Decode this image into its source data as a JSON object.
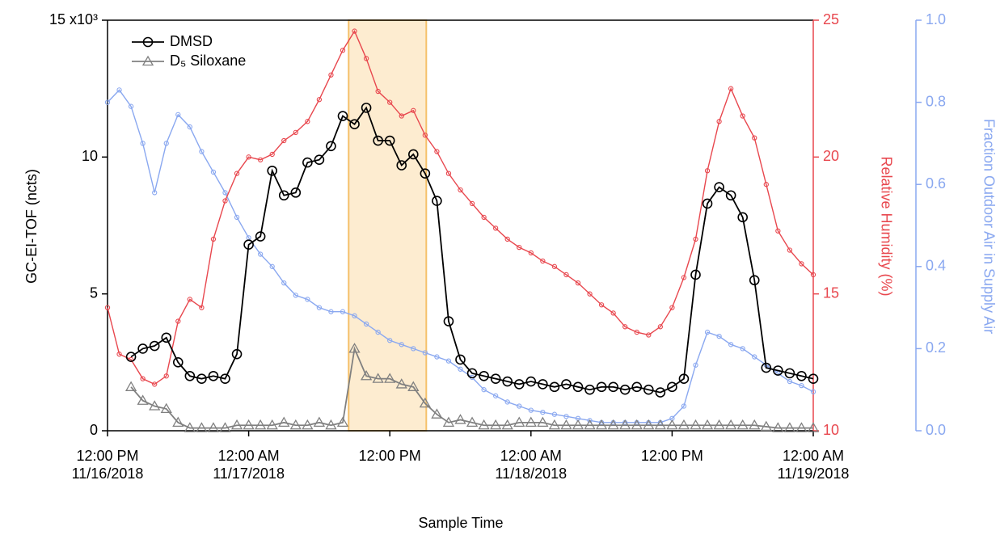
{
  "chart_data": {
    "type": "line",
    "xlabel": "Sample Time",
    "ylabel": "GC-EI-TOF (ncts)",
    "y2label": "Relative Humidity (%)",
    "y3label": "Fraction Outdoor Air in Supply Air",
    "xlim": [
      "2018-11-16 12:00",
      "2018-11-19 00:00"
    ],
    "xticks": [
      {
        "value": "2018-11-16 12:00",
        "label": "12:00 PM\n11/16/2018"
      },
      {
        "value": "2018-11-17 00:00",
        "label": "12:00 AM\n11/17/2018"
      },
      {
        "value": "2018-11-17 12:00",
        "label": "12:00 PM"
      },
      {
        "value": "2018-11-18 00:00",
        "label": "12:00 AM\n11/18/2018"
      },
      {
        "value": "2018-11-18 12:00",
        "label": "12:00 PM"
      },
      {
        "value": "2018-11-19 00:00",
        "label": "12:00 AM\n11/19/2018"
      }
    ],
    "ylim": [
      0,
      15
    ],
    "yticks": [
      0,
      5,
      10,
      {
        "value": 15,
        "label": "15 x10³"
      }
    ],
    "y2lim": [
      10,
      25
    ],
    "y2ticks": [
      10,
      15,
      20,
      25
    ],
    "y3lim": [
      0,
      1
    ],
    "y3ticks": [
      {
        "value": 0,
        "label": "0.0"
      },
      0.2,
      0.4,
      0.6,
      0.8,
      {
        "value": 1,
        "label": "1.0"
      }
    ],
    "y2color": "#e8474e",
    "y3color": "#8aa8f0",
    "highlight": {
      "x": [
        "2018-11-17 08:30",
        "2018-11-17 15:06"
      ],
      "color": "#fdecd0",
      "edge": "#f5c06a"
    },
    "legend": "upper left",
    "x": [
      "2018-11-16 12:00",
      "2018-11-16 13:00",
      "2018-11-16 14:00",
      "2018-11-16 15:00",
      "2018-11-16 16:00",
      "2018-11-16 17:00",
      "2018-11-16 18:00",
      "2018-11-16 19:00",
      "2018-11-16 20:00",
      "2018-11-16 21:00",
      "2018-11-16 22:00",
      "2018-11-16 23:00",
      "2018-11-17 00:00",
      "2018-11-17 01:00",
      "2018-11-17 02:00",
      "2018-11-17 03:00",
      "2018-11-17 04:00",
      "2018-11-17 05:00",
      "2018-11-17 06:00",
      "2018-11-17 07:00",
      "2018-11-17 08:00",
      "2018-11-17 09:00",
      "2018-11-17 10:00",
      "2018-11-17 11:00",
      "2018-11-17 12:00",
      "2018-11-17 13:00",
      "2018-11-17 14:00",
      "2018-11-17 15:00",
      "2018-11-17 16:00",
      "2018-11-17 17:00",
      "2018-11-17 18:00",
      "2018-11-17 19:00",
      "2018-11-17 20:00",
      "2018-11-17 21:00",
      "2018-11-17 22:00",
      "2018-11-17 23:00",
      "2018-11-18 00:00",
      "2018-11-18 01:00",
      "2018-11-18 02:00",
      "2018-11-18 03:00",
      "2018-11-18 04:00",
      "2018-11-18 05:00",
      "2018-11-18 06:00",
      "2018-11-18 07:00",
      "2018-11-18 08:00",
      "2018-11-18 09:00",
      "2018-11-18 10:00",
      "2018-11-18 11:00",
      "2018-11-18 12:00",
      "2018-11-18 13:00",
      "2018-11-18 14:00",
      "2018-11-18 15:00",
      "2018-11-18 16:00",
      "2018-11-18 17:00",
      "2018-11-18 18:00",
      "2018-11-18 19:00",
      "2018-11-18 20:00",
      "2018-11-18 21:00",
      "2018-11-18 22:00",
      "2018-11-18 23:00",
      "2018-11-19 00:00"
    ],
    "series": [
      {
        "name": "DMSD",
        "color": "#000000",
        "marker": "circle",
        "axis": "y",
        "values": [
          null,
          null,
          2.7,
          3.0,
          3.1,
          3.4,
          2.5,
          2.0,
          1.9,
          2.0,
          1.9,
          2.8,
          6.8,
          7.1,
          9.5,
          8.6,
          8.7,
          9.8,
          9.9,
          10.4,
          11.5,
          11.2,
          11.8,
          10.6,
          10.6,
          9.7,
          10.1,
          9.4,
          8.4,
          4.0,
          2.6,
          2.1,
          2.0,
          1.9,
          1.8,
          1.7,
          1.8,
          1.7,
          1.6,
          1.7,
          1.6,
          1.5,
          1.6,
          1.6,
          1.5,
          1.6,
          1.5,
          1.4,
          1.6,
          1.9,
          5.7,
          8.3,
          8.9,
          8.6,
          7.8,
          5.5,
          2.3,
          2.2,
          2.1,
          2.0,
          1.9
        ]
      },
      {
        "name": "D₅ Siloxane",
        "color": "#808080",
        "marker": "triangle",
        "axis": "y",
        "values": [
          null,
          null,
          1.6,
          1.1,
          0.9,
          0.8,
          0.3,
          0.1,
          0.1,
          0.1,
          0.1,
          0.2,
          0.2,
          0.2,
          0.2,
          0.3,
          0.2,
          0.2,
          0.3,
          0.2,
          0.3,
          3.0,
          2.0,
          1.9,
          1.9,
          1.7,
          1.6,
          1.0,
          0.6,
          0.3,
          0.4,
          0.3,
          0.2,
          0.2,
          0.2,
          0.3,
          0.3,
          0.3,
          0.2,
          0.2,
          0.2,
          0.2,
          0.2,
          0.2,
          0.2,
          0.2,
          0.2,
          0.2,
          0.2,
          0.2,
          0.2,
          0.2,
          0.2,
          0.2,
          0.2,
          0.2,
          0.15,
          0.1,
          0.1,
          0.1,
          0.1
        ]
      },
      {
        "color": "#e8474e",
        "marker": "small",
        "axis": "y2",
        "values": [
          14.5,
          12.8,
          12.6,
          11.9,
          11.7,
          12.0,
          14.0,
          14.8,
          14.5,
          17.0,
          18.4,
          19.4,
          20.0,
          19.9,
          20.1,
          20.6,
          20.9,
          21.3,
          22.1,
          23.0,
          23.9,
          24.6,
          23.6,
          22.4,
          22.0,
          21.5,
          21.7,
          20.8,
          20.2,
          19.4,
          18.8,
          18.3,
          17.8,
          17.4,
          17.0,
          16.7,
          16.5,
          16.2,
          16.0,
          15.7,
          15.4,
          15.0,
          14.6,
          14.3,
          13.8,
          13.6,
          13.5,
          13.8,
          14.5,
          15.6,
          17.0,
          19.5,
          21.3,
          22.5,
          21.5,
          20.7,
          19.0,
          17.3,
          16.6,
          16.1,
          15.7
        ]
      },
      {
        "color": "#8aa8f0",
        "marker": "small",
        "axis": "y3",
        "values": [
          0.8,
          0.83,
          0.79,
          0.7,
          0.58,
          0.7,
          0.77,
          0.74,
          0.68,
          0.63,
          0.58,
          0.52,
          0.47,
          0.43,
          0.4,
          0.36,
          0.33,
          0.32,
          0.3,
          0.29,
          0.29,
          0.28,
          0.26,
          0.24,
          0.22,
          0.21,
          0.2,
          0.19,
          0.18,
          0.17,
          0.15,
          0.13,
          0.1,
          0.085,
          0.07,
          0.06,
          0.05,
          0.045,
          0.04,
          0.035,
          0.03,
          0.025,
          0.02,
          0.02,
          0.02,
          0.02,
          0.02,
          0.02,
          0.03,
          0.06,
          0.16,
          0.24,
          0.23,
          0.21,
          0.2,
          0.18,
          0.16,
          0.14,
          0.12,
          0.11,
          0.095
        ]
      }
    ]
  }
}
